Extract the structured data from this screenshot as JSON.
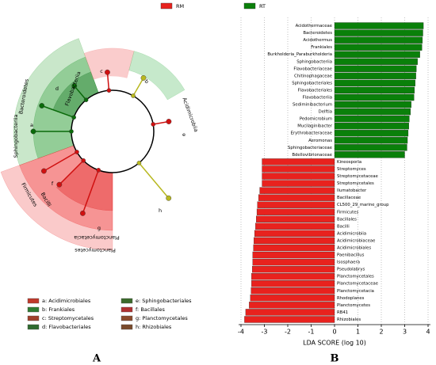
{
  "panels": [
    "A",
    "B"
  ],
  "cladogram": {
    "labels": [
      "Acidimicrobiia",
      "c",
      "b",
      "Flavobacteriia",
      "d",
      "Bacteroidetes",
      "a",
      "Sphingobacteriia",
      "e",
      "f",
      "Firmicutes",
      "Bacilli",
      "g",
      "Planctomycetacia",
      "Planctomycetes",
      "h"
    ],
    "key": [
      {
        "name": "a: Acidimicrobiales",
        "color": "#c0392b"
      },
      {
        "name": "b: Frankiales",
        "color": "#2e7d32"
      },
      {
        "name": "c: Streptomycetales",
        "color": "#a0402b"
      },
      {
        "name": "d: Flavobacteriales",
        "color": "#2e6b2e"
      },
      {
        "name": "e: Sphingobacteriales",
        "color": "#3b6b2b"
      },
      {
        "name": "f: Bacillales",
        "color": "#b03030"
      },
      {
        "name": "g: Planctomycetales",
        "color": "#8b4a2b"
      },
      {
        "name": "h: Rhizobiales",
        "color": "#7a4a2b"
      }
    ]
  },
  "chart_data": {
    "type": "bar",
    "orientation": "horizontal",
    "xlabel": "LDA SCORE (log 10)",
    "categories": [
      "Acidothermaceae",
      "Bacteroidetes",
      "Acidothermus",
      "Frankiales",
      "Burkholderia_Paraburkholderia",
      "Sphingobacteriia",
      "Flavobacteriaceae",
      "Chitinophagaceae",
      "Sphingobacteriales",
      "Flavobacteriales",
      "Flavobacteriia",
      "Sediminibacterium",
      "Delftia",
      "Pedomicrobium",
      "Mucilaginibacter",
      "Erythrobacteraceae",
      "Aeromonas",
      "Sphingobacteriaceae",
      "Bdellovibrionaceae",
      "Kineosporia",
      "Streptomyces",
      "Streptomycetaceae",
      "Streptomycetales",
      "Ilumatobacter",
      "Bacillaceae",
      "CL500_29_marine_group",
      "Firmicutes",
      "Bacillales",
      "Bacilli",
      "Acidimicrobiia",
      "Acidimicrobiaceae",
      "Acidimicrobiales",
      "Paenibacillus",
      "Isosphaera",
      "Pseudolabrys",
      "Planctomycetales",
      "Planctomycetaceae",
      "Planctomycetacia",
      "Rhodoplanes",
      "Planctomycetes",
      "RB41",
      "Rhizobiales"
    ],
    "series": [
      {
        "name": "RM",
        "color": "#e8221e",
        "values": [
          null,
          null,
          null,
          null,
          null,
          null,
          null,
          null,
          null,
          null,
          null,
          null,
          null,
          null,
          null,
          null,
          null,
          null,
          null,
          -3.1,
          -3.1,
          -3.1,
          -3.1,
          -3.2,
          -3.25,
          -3.3,
          -3.32,
          -3.35,
          -3.38,
          -3.42,
          -3.45,
          -3.47,
          -3.5,
          -3.5,
          -3.52,
          -3.55,
          -3.55,
          -3.57,
          -3.6,
          -3.65,
          -3.8,
          -3.85
        ]
      },
      {
        "name": "RT",
        "color": "#0a800a",
        "values": [
          3.8,
          3.78,
          3.76,
          3.74,
          3.65,
          3.55,
          3.5,
          3.48,
          3.45,
          3.42,
          3.4,
          3.28,
          3.25,
          3.2,
          3.18,
          3.15,
          3.12,
          3.1,
          3.0,
          null,
          null,
          null,
          null,
          null,
          null,
          null,
          null,
          null,
          null,
          null,
          null,
          null,
          null,
          null,
          null,
          null,
          null,
          null,
          null,
          null,
          null,
          null
        ]
      }
    ],
    "xlim": [
      -4.1,
      4.1
    ],
    "xticks": [
      -4,
      -3,
      -2,
      -1,
      0,
      1,
      2,
      3,
      4
    ],
    "grid": true
  }
}
